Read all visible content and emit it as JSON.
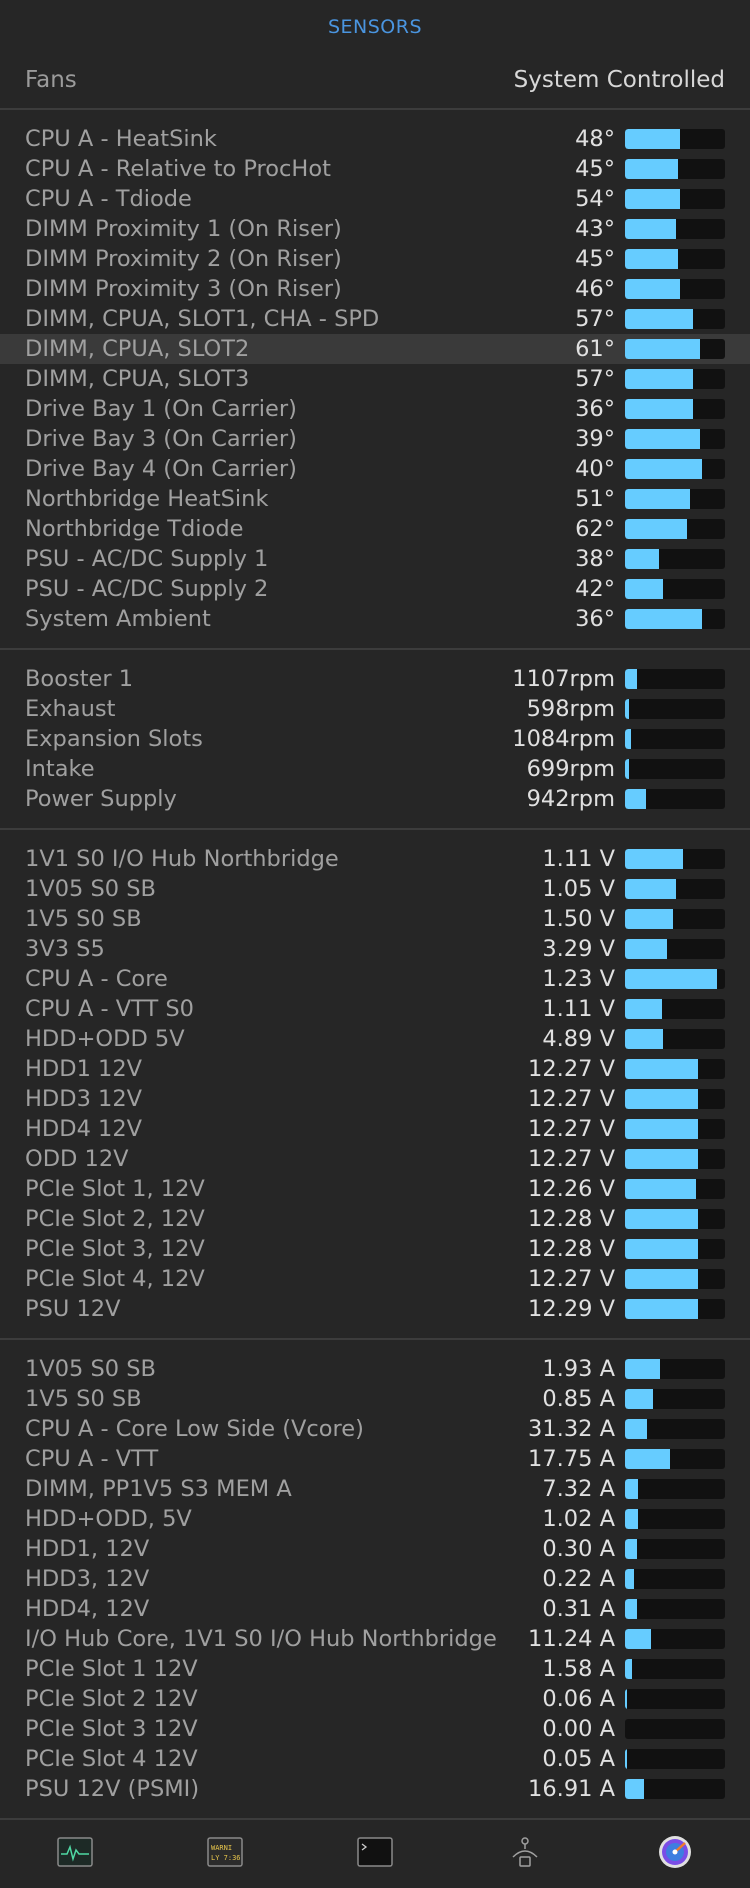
{
  "header": {
    "title": "SENSORS"
  },
  "fans": {
    "label": "Fans",
    "value": "System Controlled"
  },
  "sections": [
    {
      "name": "temperatures",
      "rows": [
        {
          "label": "CPU A - HeatSink",
          "value": "48°",
          "fill": 0.55
        },
        {
          "label": "CPU A - Relative to ProcHot",
          "value": "45°",
          "fill": 0.53
        },
        {
          "label": "CPU A - Tdiode",
          "value": "54°",
          "fill": 0.55
        },
        {
          "label": "DIMM Proximity 1 (On Riser)",
          "value": "43°",
          "fill": 0.51
        },
        {
          "label": "DIMM Proximity 2 (On Riser)",
          "value": "45°",
          "fill": 0.53
        },
        {
          "label": "DIMM Proximity 3 (On Riser)",
          "value": "46°",
          "fill": 0.55
        },
        {
          "label": "DIMM, CPUA, SLOT1, CHA - SPD",
          "value": "57°",
          "fill": 0.68
        },
        {
          "label": "DIMM, CPUA, SLOT2",
          "value": "61°",
          "fill": 0.75,
          "highlight": true
        },
        {
          "label": "DIMM, CPUA, SLOT3",
          "value": "57°",
          "fill": 0.68
        },
        {
          "label": "Drive Bay 1 (On Carrier)",
          "value": "36°",
          "fill": 0.68
        },
        {
          "label": "Drive Bay 3 (On Carrier)",
          "value": "39°",
          "fill": 0.75
        },
        {
          "label": "Drive Bay 4 (On Carrier)",
          "value": "40°",
          "fill": 0.77
        },
        {
          "label": "Northbridge HeatSink",
          "value": "51°",
          "fill": 0.65
        },
        {
          "label": "Northbridge Tdiode",
          "value": "62°",
          "fill": 0.62
        },
        {
          "label": "PSU - AC/DC Supply 1",
          "value": "38°",
          "fill": 0.34
        },
        {
          "label": "PSU - AC/DC Supply 2",
          "value": "42°",
          "fill": 0.38
        },
        {
          "label": "System Ambient",
          "value": "36°",
          "fill": 0.77
        }
      ]
    },
    {
      "name": "fans",
      "rows": [
        {
          "label": "Booster 1",
          "value": "1107rpm",
          "fill": 0.12
        },
        {
          "label": "Exhaust",
          "value": "598rpm",
          "fill": 0.04
        },
        {
          "label": "Expansion Slots",
          "value": "1084rpm",
          "fill": 0.06
        },
        {
          "label": "Intake",
          "value": "699rpm",
          "fill": 0.04
        },
        {
          "label": "Power Supply",
          "value": "942rpm",
          "fill": 0.21
        }
      ]
    },
    {
      "name": "voltages",
      "rows": [
        {
          "label": "1V1 S0 I/O Hub Northbridge",
          "value": "1.11 V",
          "fill": 0.58
        },
        {
          "label": "1V05 S0 SB",
          "value": "1.05 V",
          "fill": 0.51
        },
        {
          "label": "1V5 S0 SB",
          "value": "1.50 V",
          "fill": 0.48
        },
        {
          "label": "3V3 S5",
          "value": "3.29 V",
          "fill": 0.42
        },
        {
          "label": "CPU A - Core",
          "value": "1.23 V",
          "fill": 0.92
        },
        {
          "label": "CPU A - VTT S0",
          "value": "1.11 V",
          "fill": 0.37
        },
        {
          "label": "HDD+ODD 5V",
          "value": "4.89 V",
          "fill": 0.38
        },
        {
          "label": "HDD1 12V",
          "value": "12.27 V",
          "fill": 0.73
        },
        {
          "label": "HDD3 12V",
          "value": "12.27 V",
          "fill": 0.73
        },
        {
          "label": "HDD4 12V",
          "value": "12.27 V",
          "fill": 0.73
        },
        {
          "label": "ODD 12V",
          "value": "12.27 V",
          "fill": 0.73
        },
        {
          "label": "PCIe Slot 1, 12V",
          "value": "12.26 V",
          "fill": 0.71
        },
        {
          "label": "PCIe Slot 2, 12V",
          "value": "12.28 V",
          "fill": 0.73
        },
        {
          "label": "PCIe Slot 3, 12V",
          "value": "12.28 V",
          "fill": 0.73
        },
        {
          "label": "PCIe Slot 4, 12V",
          "value": "12.27 V",
          "fill": 0.73
        },
        {
          "label": "PSU 12V",
          "value": "12.29 V",
          "fill": 0.73
        }
      ]
    },
    {
      "name": "currents",
      "rows": [
        {
          "label": "1V05 S0 SB",
          "value": "1.93 A",
          "fill": 0.35
        },
        {
          "label": "1V5 S0 SB",
          "value": "0.85 A",
          "fill": 0.28
        },
        {
          "label": "CPU A - Core Low Side (Vcore)",
          "value": "31.32 A",
          "fill": 0.22
        },
        {
          "label": "CPU A - VTT",
          "value": "17.75 A",
          "fill": 0.45
        },
        {
          "label": "DIMM, PP1V5 S3 MEM A",
          "value": "7.32 A",
          "fill": 0.13
        },
        {
          "label": "HDD+ODD, 5V",
          "value": "1.02 A",
          "fill": 0.13
        },
        {
          "label": "HDD1, 12V",
          "value": "0.30 A",
          "fill": 0.12
        },
        {
          "label": "HDD3, 12V",
          "value": "0.22 A",
          "fill": 0.09
        },
        {
          "label": "HDD4, 12V",
          "value": "0.31 A",
          "fill": 0.12
        },
        {
          "label": "I/O Hub Core, 1V1 S0 I/O Hub Northbridge",
          "value": "11.24 A",
          "fill": 0.26
        },
        {
          "label": "PCIe Slot 1 12V",
          "value": "1.58 A",
          "fill": 0.07
        },
        {
          "label": "PCIe Slot 2 12V",
          "value": "0.06 A",
          "fill": 0.02
        },
        {
          "label": "PCIe Slot 3 12V",
          "value": "0.00 A",
          "fill": 0.0
        },
        {
          "label": "PCIe Slot 4 12V",
          "value": "0.05 A",
          "fill": 0.02
        },
        {
          "label": "PSU 12V (PSMI)",
          "value": "16.91 A",
          "fill": 0.19
        }
      ]
    }
  ],
  "tabbar": {
    "tabs": [
      {
        "name": "activity-monitor-tab",
        "icon": "activity-monitor-icon"
      },
      {
        "name": "console-tab",
        "icon": "console-log-icon",
        "text": [
          "WARNI",
          "LY 7:36"
        ]
      },
      {
        "name": "terminal-tab",
        "icon": "terminal-icon"
      },
      {
        "name": "network-tab",
        "icon": "network-icon"
      },
      {
        "name": "disk-utility-tab",
        "icon": "disk-utility-icon"
      }
    ]
  },
  "colors": {
    "accent": "#4a95e0",
    "bar_fill": "#66ccff",
    "bar_track": "#111111",
    "background": "#262626"
  }
}
